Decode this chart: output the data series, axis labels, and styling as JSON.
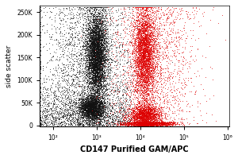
{
  "title": "",
  "xlabel": "CD147 Purified GAM/APC",
  "ylabel": "side scatter",
  "xlabel_fontsize": 7,
  "ylabel_fontsize": 6.5,
  "bg_color": "#ffffff",
  "xlim_log": [
    1.7,
    6.05
  ],
  "ylim": [
    -3000,
    265000
  ],
  "yticks": [
    0,
    50000,
    100000,
    150000,
    200000,
    250000
  ],
  "ytick_labels": [
    "0",
    "50K",
    "100K",
    "150K",
    "200K",
    "250K"
  ],
  "xtick_positions": [
    100,
    1000,
    10000,
    100000,
    1000000
  ],
  "xtick_labels": [
    "10²",
    "10³",
    "10⁴",
    "10⁵",
    "10⁶"
  ],
  "black_color": "#111111",
  "red_color": "#dd0000",
  "n_black": 12000,
  "n_red": 9000,
  "seed": 7
}
